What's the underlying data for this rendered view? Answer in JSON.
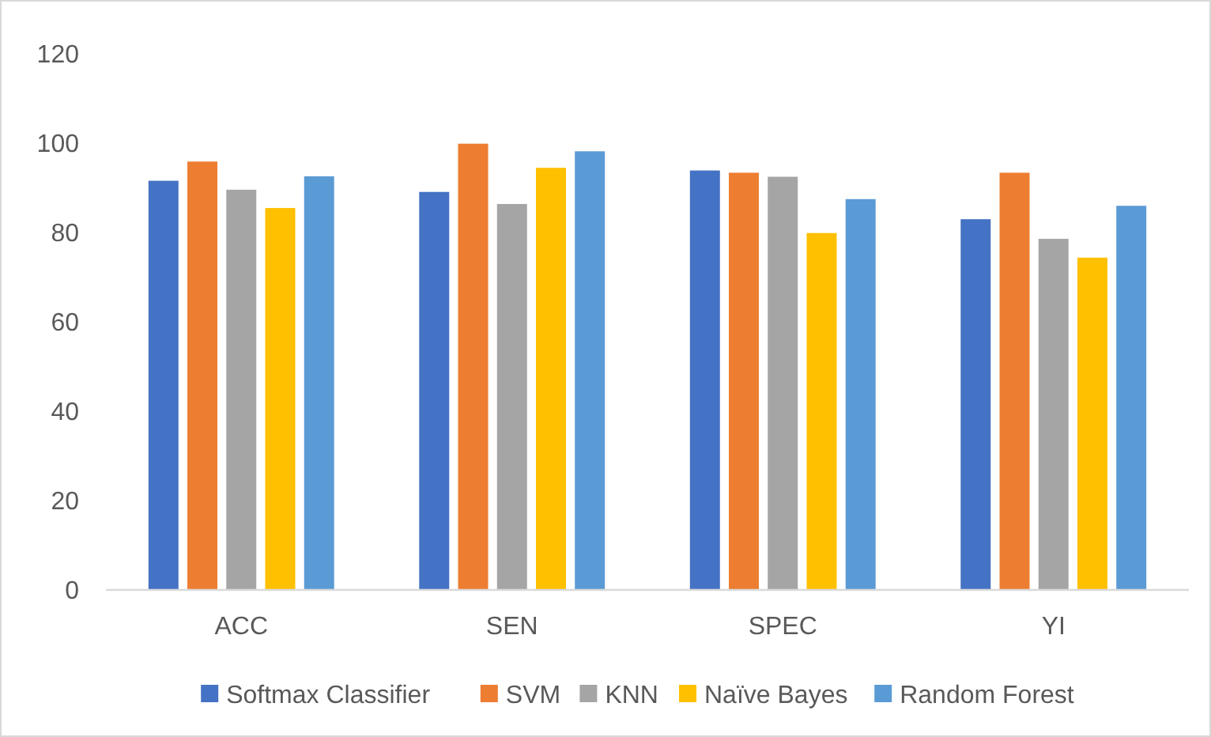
{
  "chart_data": {
    "type": "bar",
    "categories": [
      "ACC",
      "SEN",
      "SPEC",
      "YI"
    ],
    "series": [
      {
        "name": "Softmax Classifier",
        "color": "#4472c4",
        "values": [
          91.7,
          89.2,
          94.0,
          83.1
        ]
      },
      {
        "name": "SVM",
        "color": "#ed7d31",
        "values": [
          96.0,
          100,
          93.5,
          93.5
        ]
      },
      {
        "name": "KNN",
        "color": "#a5a5a5",
        "values": [
          89.7,
          86.5,
          92.6,
          78.7
        ]
      },
      {
        "name": "Naïve Bayes",
        "color": "#ffc000",
        "values": [
          85.6,
          94.6,
          80.0,
          74.5
        ]
      },
      {
        "name": "Random Forest",
        "color": "#5b9bd5",
        "values": [
          92.7,
          98.3,
          87.6,
          86.1
        ]
      }
    ],
    "ylim": [
      0,
      120
    ],
    "yticks": [
      0,
      20,
      40,
      60,
      80,
      100,
      120
    ],
    "grid": false,
    "legend": "bottom"
  }
}
